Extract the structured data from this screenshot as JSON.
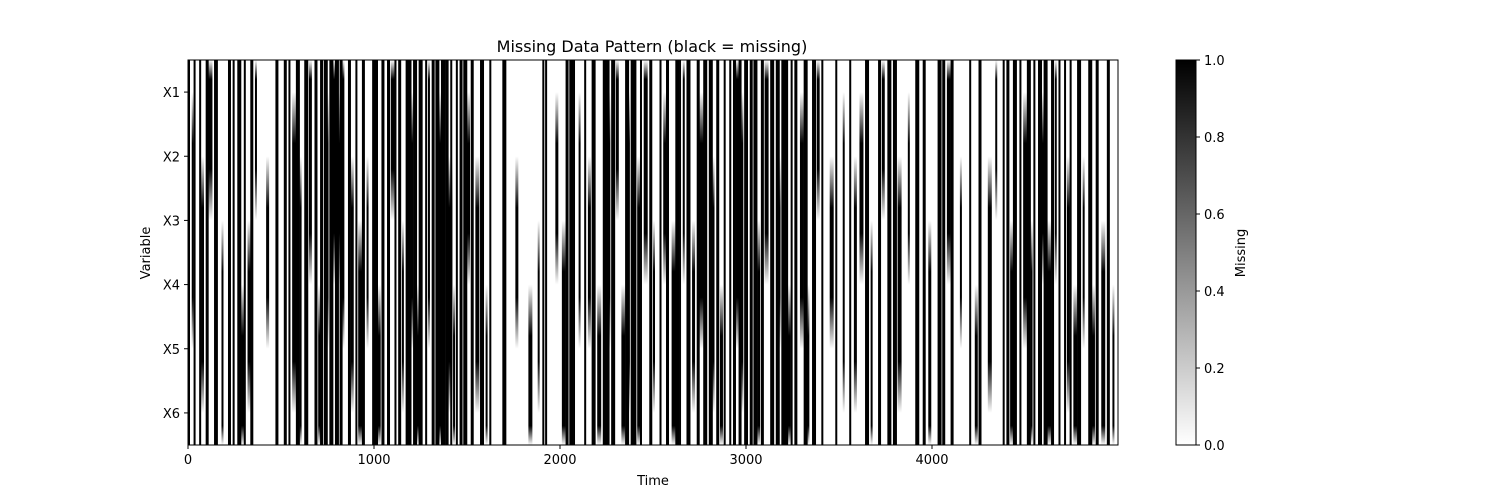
{
  "chart_data": {
    "type": "heatmap",
    "title": "Missing Data Pattern (black = missing)",
    "xlabel": "Time",
    "ylabel": "Variable",
    "rows": [
      "X1",
      "X2",
      "X3",
      "X4",
      "X5",
      "X6"
    ],
    "xlim": [
      0,
      5000
    ],
    "x_ticks": [
      0,
      1000,
      2000,
      3000,
      4000
    ],
    "value_range": [
      0,
      1
    ],
    "colormap": "gray_r",
    "interpolation": "smooth (bilinear)",
    "colorbar": {
      "label": "Missing",
      "ticks": [
        "0.0",
        "0.2",
        "0.4",
        "0.6",
        "0.8",
        "1.0"
      ],
      "tick_values": [
        0,
        0.2,
        0.4,
        0.6,
        0.8,
        1.0
      ]
    },
    "all_rows_missing_at": [
      0,
      30,
      60,
      95,
      140,
      150,
      215,
      240,
      265,
      300,
      335,
      470,
      515,
      540,
      580,
      625,
      680,
      710,
      730,
      760,
      790,
      815,
      860,
      900,
      935,
      990,
      1000,
      1040,
      1070,
      1110,
      1130,
      1170,
      1180,
      1210,
      1240,
      1275,
      1310,
      1330,
      1360,
      1370,
      1385,
      1410,
      1440,
      1460,
      1480,
      1520,
      1570,
      1620,
      1690,
      1905,
      1920,
      2030,
      2050,
      2070,
      2130,
      2170,
      2230,
      2245,
      2275,
      2350,
      2380,
      2400,
      2430,
      2480,
      2535,
      2570,
      2620,
      2640,
      2680,
      2735,
      2770,
      2800,
      2840,
      2880,
      2910,
      2930,
      2960,
      2990,
      3000,
      3020,
      3040,
      3080,
      3130,
      3160,
      3190,
      3205,
      3240,
      3260,
      3310,
      3355,
      3405,
      3480,
      3555,
      3640,
      3710,
      3760,
      3790,
      3910,
      3950,
      4030,
      4055,
      4100,
      4200,
      4250,
      4380,
      4400,
      4435,
      4470,
      4510,
      4545,
      4570,
      4600,
      4640,
      4680,
      4710,
      4740,
      4780,
      4840,
      4880,
      4940
    ],
    "partial_missing": [
      {
        "x": 20,
        "rows": [
          1,
          2,
          3
        ]
      },
      {
        "x": 70,
        "rows": [
          2,
          3,
          4
        ]
      },
      {
        "x": 110,
        "rows": [
          0,
          1
        ]
      },
      {
        "x": 180,
        "rows": [
          3,
          4,
          5
        ]
      },
      {
        "x": 285,
        "rows": [
          4,
          5
        ]
      },
      {
        "x": 320,
        "rows": [
          3,
          4
        ]
      },
      {
        "x": 360,
        "rows": [
          0,
          1
        ]
      },
      {
        "x": 420,
        "rows": [
          2,
          3
        ]
      },
      {
        "x": 560,
        "rows": [
          1,
          2,
          3,
          4
        ]
      },
      {
        "x": 600,
        "rows": [
          2,
          3,
          4,
          5
        ]
      },
      {
        "x": 650,
        "rows": [
          0,
          1,
          2
        ]
      },
      {
        "x": 700,
        "rows": [
          4,
          5
        ]
      },
      {
        "x": 745,
        "rows": [
          1,
          2,
          3
        ]
      },
      {
        "x": 775,
        "rows": [
          0,
          1,
          2
        ]
      },
      {
        "x": 800,
        "rows": [
          1,
          2
        ]
      },
      {
        "x": 830,
        "rows": [
          0,
          1,
          2,
          3
        ]
      },
      {
        "x": 875,
        "rows": [
          2,
          3,
          4
        ]
      },
      {
        "x": 915,
        "rows": [
          3,
          4,
          5
        ]
      },
      {
        "x": 960,
        "rows": [
          2,
          3
        ]
      },
      {
        "x": 1020,
        "rows": [
          4,
          5
        ]
      },
      {
        "x": 1090,
        "rows": [
          0,
          1
        ]
      },
      {
        "x": 1150,
        "rows": [
          3,
          4
        ]
      },
      {
        "x": 1195,
        "rows": [
          1,
          2,
          3
        ]
      },
      {
        "x": 1225,
        "rows": [
          4,
          5
        ]
      },
      {
        "x": 1290,
        "rows": [
          0,
          1,
          2,
          3
        ]
      },
      {
        "x": 1345,
        "rows": [
          1,
          2,
          3,
          4,
          5
        ]
      },
      {
        "x": 1400,
        "rows": [
          2,
          3,
          4
        ]
      },
      {
        "x": 1425,
        "rows": [
          4,
          5
        ]
      },
      {
        "x": 1500,
        "rows": [
          1,
          2
        ]
      },
      {
        "x": 1545,
        "rows": [
          2,
          3,
          4
        ]
      },
      {
        "x": 1600,
        "rows": [
          4,
          5
        ]
      },
      {
        "x": 1760,
        "rows": [
          2,
          3
        ]
      },
      {
        "x": 1830,
        "rows": [
          4,
          5
        ]
      },
      {
        "x": 1880,
        "rows": [
          3,
          4
        ]
      },
      {
        "x": 1975,
        "rows": [
          1,
          2
        ]
      },
      {
        "x": 2010,
        "rows": [
          3,
          4,
          5
        ]
      },
      {
        "x": 2100,
        "rows": [
          1,
          2,
          3
        ]
      },
      {
        "x": 2150,
        "rows": [
          2,
          3
        ]
      },
      {
        "x": 2200,
        "rows": [
          4,
          5
        ]
      },
      {
        "x": 2260,
        "rows": [
          1,
          2,
          3
        ]
      },
      {
        "x": 2300,
        "rows": [
          0,
          1
        ]
      },
      {
        "x": 2330,
        "rows": [
          4,
          5
        ]
      },
      {
        "x": 2365,
        "rows": [
          1,
          2,
          3,
          4
        ]
      },
      {
        "x": 2415,
        "rows": [
          2,
          3,
          4,
          5
        ]
      },
      {
        "x": 2450,
        "rows": [
          0,
          1,
          2
        ]
      },
      {
        "x": 2500,
        "rows": [
          3,
          4
        ]
      },
      {
        "x": 2555,
        "rows": [
          1,
          2
        ]
      },
      {
        "x": 2600,
        "rows": [
          3,
          4,
          5
        ]
      },
      {
        "x": 2660,
        "rows": [
          0,
          1,
          2
        ]
      },
      {
        "x": 2710,
        "rows": [
          3,
          4
        ]
      },
      {
        "x": 2750,
        "rows": [
          1,
          2,
          3
        ]
      },
      {
        "x": 2820,
        "rows": [
          2,
          3,
          4
        ]
      },
      {
        "x": 2860,
        "rows": [
          4,
          5
        ]
      },
      {
        "x": 2945,
        "rows": [
          0,
          1,
          2,
          3
        ]
      },
      {
        "x": 2975,
        "rows": [
          1,
          2,
          3,
          4
        ]
      },
      {
        "x": 3060,
        "rows": [
          3,
          4,
          5
        ]
      },
      {
        "x": 3100,
        "rows": [
          0,
          1,
          2
        ]
      },
      {
        "x": 3175,
        "rows": [
          2,
          3
        ]
      },
      {
        "x": 3225,
        "rows": [
          4,
          5
        ]
      },
      {
        "x": 3290,
        "rows": [
          1,
          2,
          3
        ]
      },
      {
        "x": 3330,
        "rows": [
          4,
          5
        ]
      },
      {
        "x": 3380,
        "rows": [
          0,
          1
        ]
      },
      {
        "x": 3450,
        "rows": [
          2,
          3
        ]
      },
      {
        "x": 3520,
        "rows": [
          1,
          2,
          3,
          4
        ]
      },
      {
        "x": 3580,
        "rows": [
          2,
          3,
          4
        ]
      },
      {
        "x": 3610,
        "rows": [
          1,
          2
        ]
      },
      {
        "x": 3670,
        "rows": [
          3,
          4,
          5
        ]
      },
      {
        "x": 3730,
        "rows": [
          0,
          1
        ]
      },
      {
        "x": 3815,
        "rows": [
          2,
          3,
          4
        ]
      },
      {
        "x": 3870,
        "rows": [
          1,
          2
        ]
      },
      {
        "x": 3980,
        "rows": [
          3,
          4,
          5
        ]
      },
      {
        "x": 4080,
        "rows": [
          0,
          1,
          2
        ]
      },
      {
        "x": 4150,
        "rows": [
          2,
          3
        ]
      },
      {
        "x": 4230,
        "rows": [
          4,
          5
        ]
      },
      {
        "x": 4300,
        "rows": [
          2,
          3,
          4
        ]
      },
      {
        "x": 4340,
        "rows": [
          0,
          1
        ]
      },
      {
        "x": 4420,
        "rows": [
          3,
          4,
          5
        ]
      },
      {
        "x": 4490,
        "rows": [
          1,
          2,
          3
        ]
      },
      {
        "x": 4530,
        "rows": [
          3,
          4,
          5
        ]
      },
      {
        "x": 4590,
        "rows": [
          1,
          2
        ]
      },
      {
        "x": 4620,
        "rows": [
          3,
          4,
          5
        ]
      },
      {
        "x": 4660,
        "rows": [
          0,
          1,
          2
        ]
      },
      {
        "x": 4725,
        "rows": [
          2,
          3,
          4
        ]
      },
      {
        "x": 4760,
        "rows": [
          4,
          5
        ]
      },
      {
        "x": 4810,
        "rows": [
          2,
          3
        ]
      },
      {
        "x": 4860,
        "rows": [
          4,
          5
        ]
      },
      {
        "x": 4910,
        "rows": [
          3,
          4,
          5
        ]
      },
      {
        "x": 4970,
        "rows": [
          4,
          5
        ]
      }
    ]
  }
}
